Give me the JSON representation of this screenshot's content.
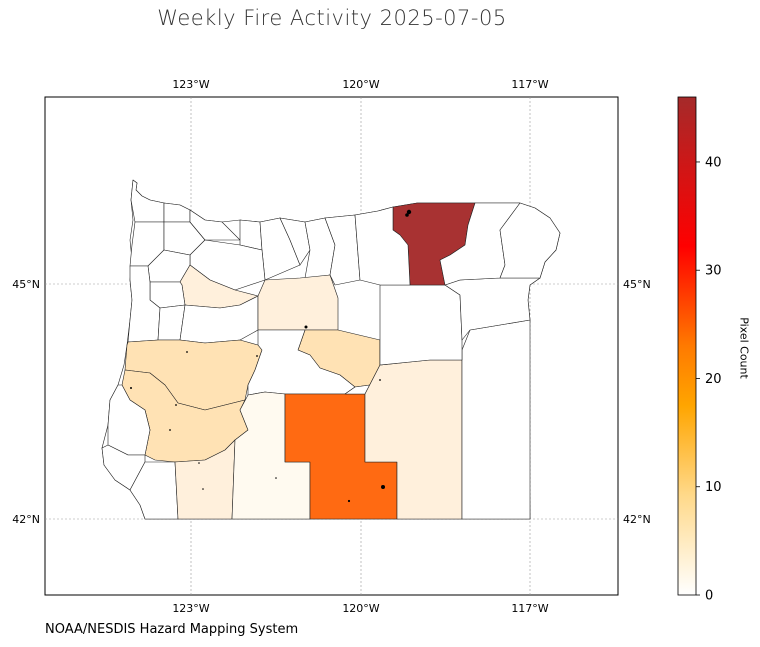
{
  "title": "Weekly Fire Activity 2025-07-05",
  "credit": "NOAA/NESDIS Hazard Mapping System",
  "colorbar": {
    "label": "Pixel Count",
    "min": 0,
    "max": 46,
    "ticks": [
      "0",
      "10",
      "20",
      "30",
      "40"
    ],
    "colors": [
      "#ffffff",
      "#ffd98a",
      "#ff7a00",
      "#ff0000",
      "#a52a2a"
    ]
  },
  "longitude_labels": [
    "123°W",
    "120°W",
    "117°W"
  ],
  "latitude_labels": [
    "45°N",
    "42°N"
  ],
  "county_colors": {
    "zero": "#ffffff",
    "very_low": "#fffaf0",
    "low": "#fff0dc",
    "medium": "#ffe2b4",
    "high": "#ff6a12",
    "very_high": "#a83232"
  }
}
